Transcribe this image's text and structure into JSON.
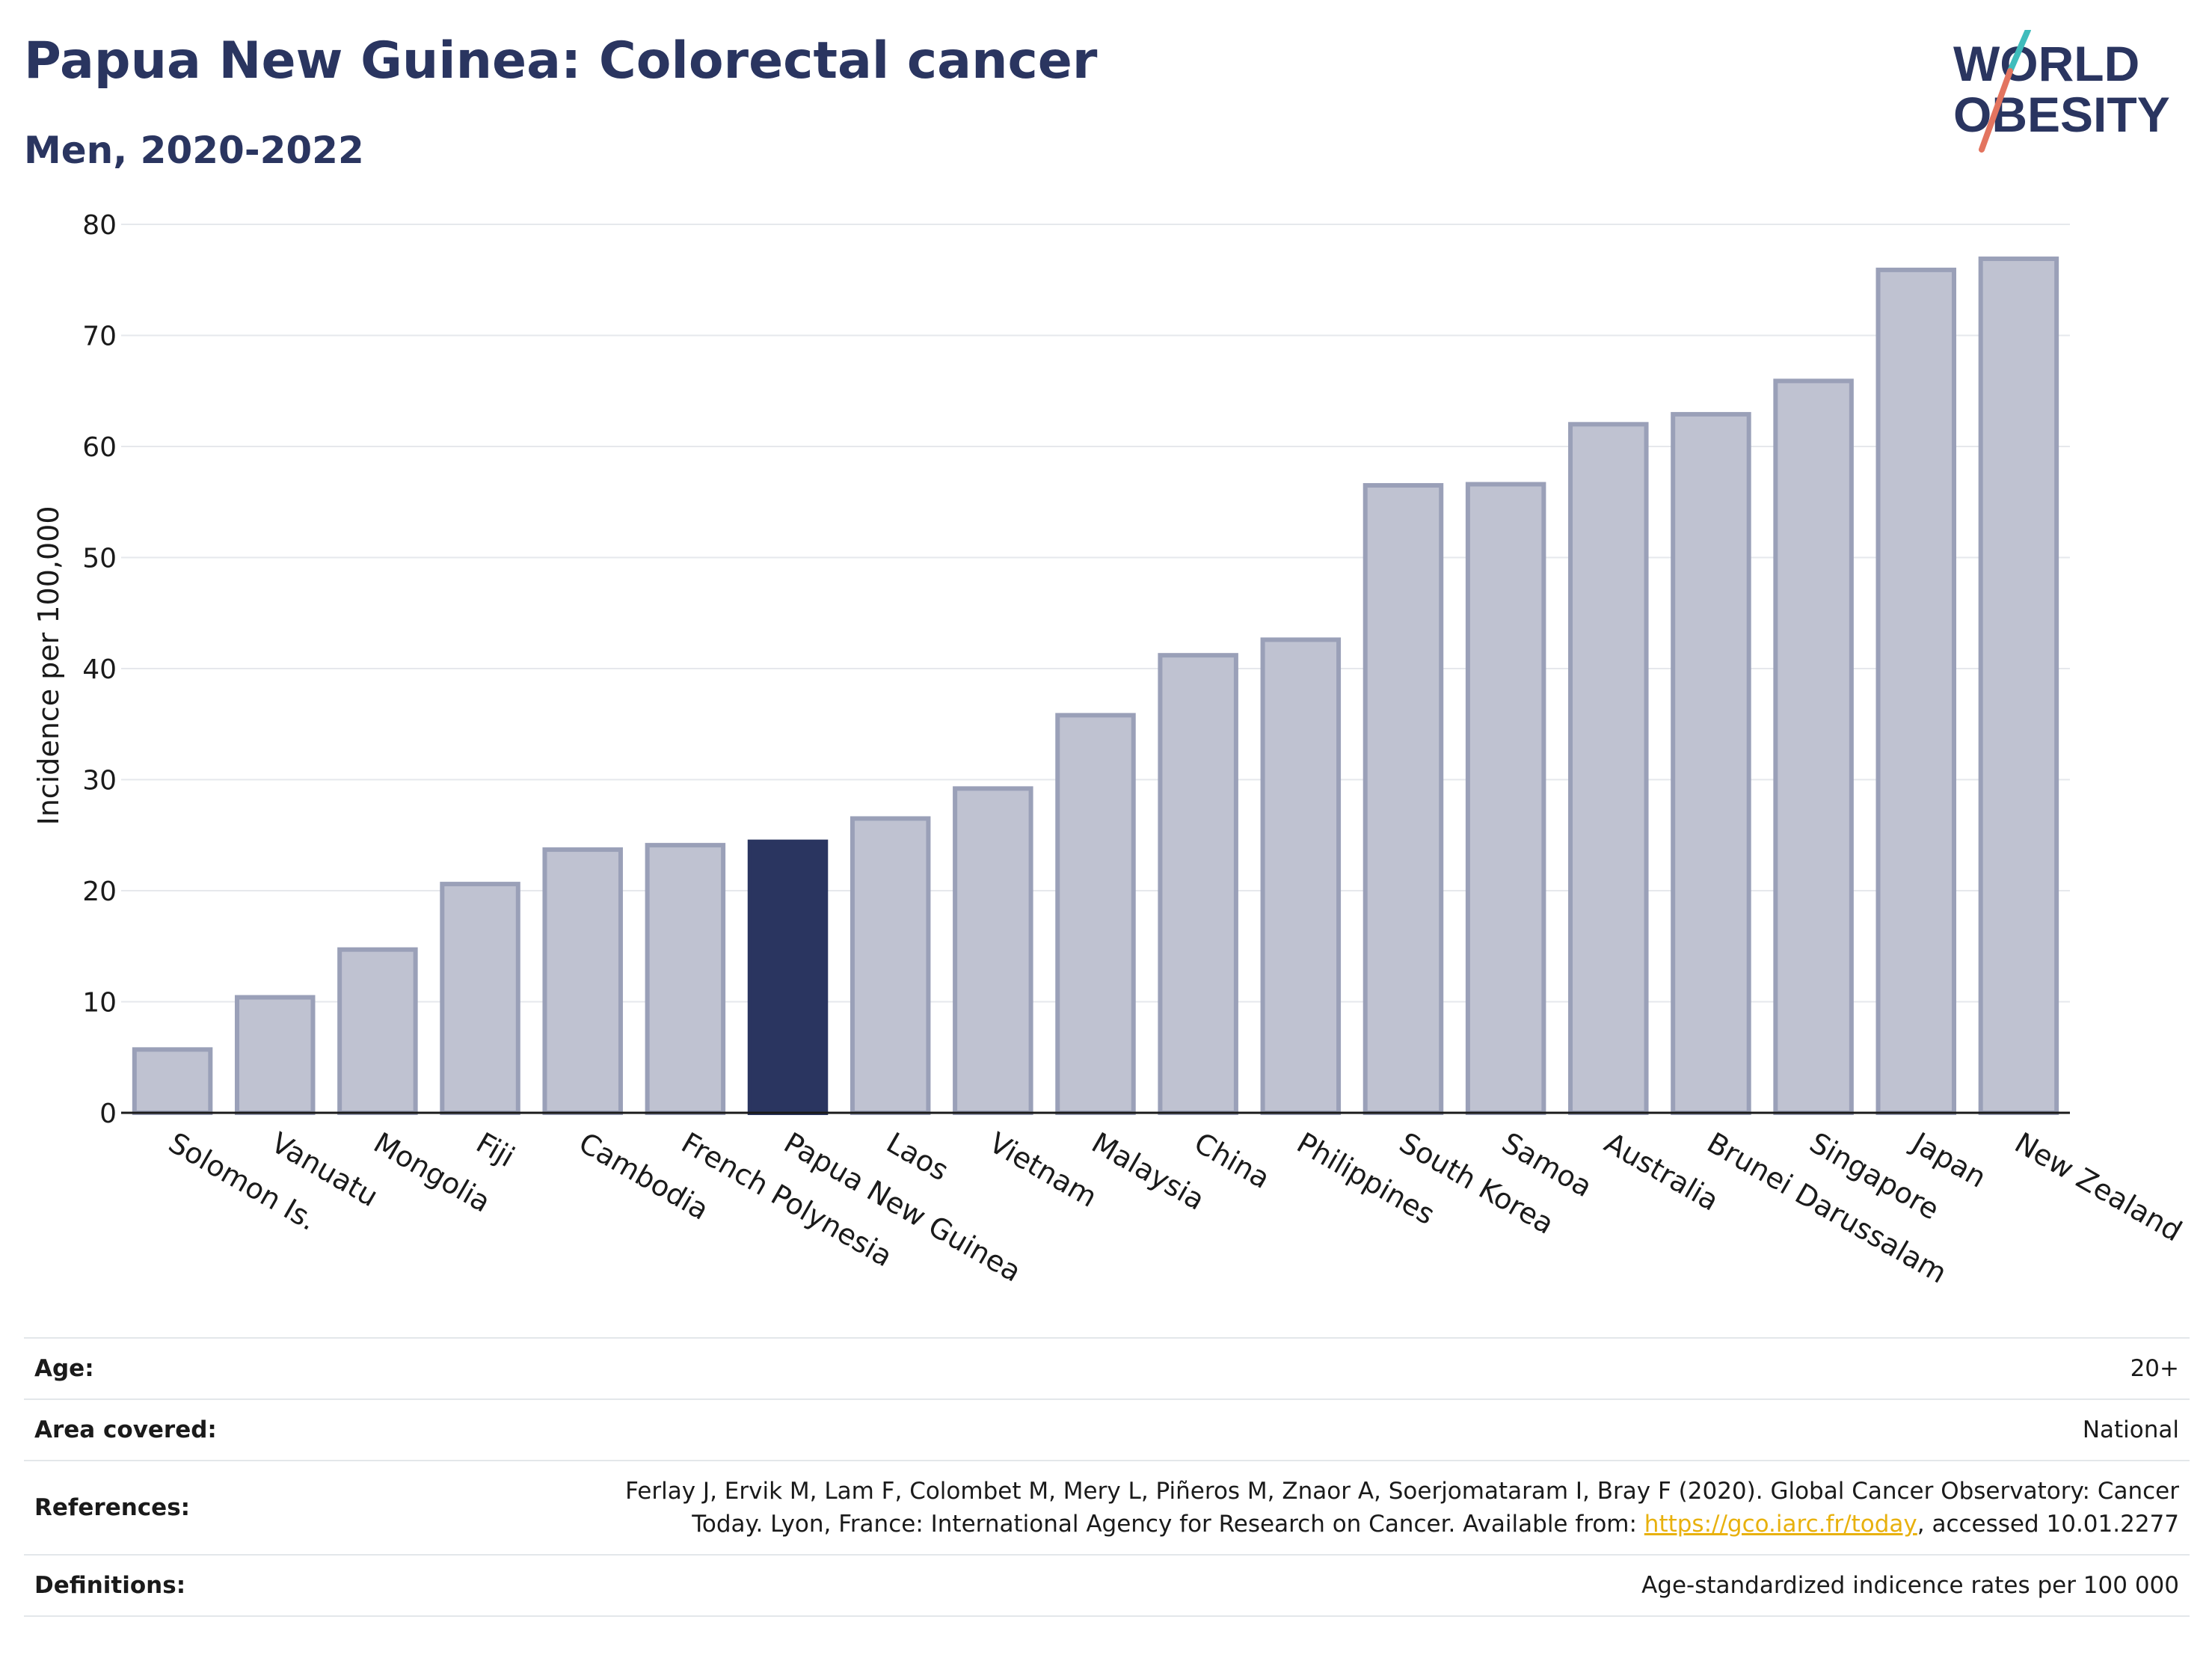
{
  "header": {
    "title": "Papua New Guinea: Colorectal cancer",
    "subtitle": "Men, 2020-2022"
  },
  "logo": {
    "line1": "WORLD",
    "line2": "OBESITY"
  },
  "colors": {
    "title": "#2a3560",
    "bar": "#bfc2d1",
    "bar_stroke": "#9aa0b8",
    "highlight": "#2a3560",
    "grid": "#e6e8ec",
    "logo_teal": "#3fbcbc",
    "logo_red": "#e3745f",
    "link": "#e8b10e"
  },
  "chart_data": {
    "type": "bar",
    "ylabel": "Incidence per 100,000",
    "ylim": [
      0,
      80
    ],
    "yticks": [
      0,
      10,
      20,
      30,
      40,
      50,
      60,
      70,
      80
    ],
    "grid": true,
    "highlight": "Papua New Guinea",
    "categories": [
      "Solomon Is.",
      "Vanuatu",
      "Mongolia",
      "Fiji",
      "Cambodia",
      "French Polynesia",
      "Papua New Guinea",
      "Laos",
      "Vietnam",
      "Malaysia",
      "China",
      "Philippines",
      "South Korea",
      "Samoa",
      "Australia",
      "Brunei Darussalam",
      "Singapore",
      "Japan",
      "New Zealand"
    ],
    "values": [
      5.7,
      10.4,
      14.7,
      20.6,
      23.7,
      24.1,
      24.4,
      26.5,
      29.2,
      35.8,
      41.2,
      42.6,
      56.5,
      56.6,
      62.0,
      62.9,
      65.9,
      75.9,
      76.9
    ]
  },
  "info": {
    "age_label": "Age:",
    "age_value": "20+",
    "area_label": "Area covered:",
    "area_value": "National",
    "ref_label": "References:",
    "ref_text_1": "Ferlay J, Ervik M, Lam F, Colombet M, Mery L, Piñeros M, Znaor A, Soerjomataram I, Bray F (2020). Global Cancer Observatory: Cancer",
    "ref_text_2a": "Today. Lyon, France: International Agency for Research on Cancer. Available from: ",
    "ref_link": "https://gco.iarc.fr/today",
    "ref_text_2b": ", accessed 10.01.2277",
    "def_label": "Definitions:",
    "def_value": "Age-standardized indicence rates per 100 000"
  }
}
